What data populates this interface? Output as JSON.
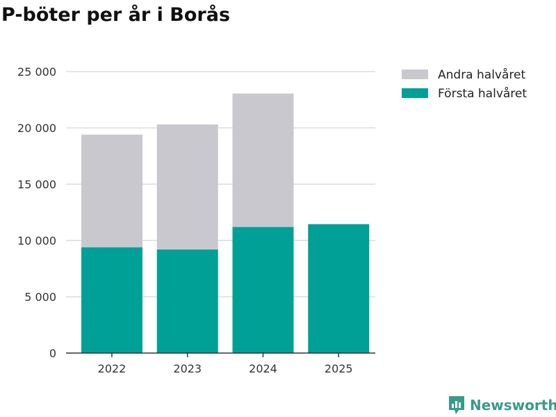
{
  "chart_data": {
    "type": "bar",
    "stacked": true,
    "title": "P-böter per år i Borås",
    "categories": [
      "2022",
      "2023",
      "2024",
      "2025"
    ],
    "series": [
      {
        "name": "Första halvåret",
        "color": "#00a096",
        "values": [
          9400,
          9200,
          11200,
          11450
        ]
      },
      {
        "name": "Andra halvåret",
        "color": "#c9c8cf",
        "values": [
          10000,
          11100,
          11850,
          0
        ]
      }
    ],
    "yticks": [
      0,
      5000,
      10000,
      15000,
      20000,
      25000
    ],
    "ytick_labels": [
      "0",
      "5 000",
      "10 000",
      "15 000",
      "20 000",
      "25 000"
    ],
    "ylim": [
      0,
      25000
    ],
    "xlabel": "",
    "ylabel": "",
    "legend": [
      {
        "label": "Andra halvåret",
        "color": "#c9c8cf"
      },
      {
        "label": "Första halvåret",
        "color": "#00a096"
      }
    ],
    "legend_position": "right"
  },
  "branding": {
    "name": "Newsworthy",
    "icon": "newsworthy-logo-icon",
    "color": "#3a9a8c"
  }
}
